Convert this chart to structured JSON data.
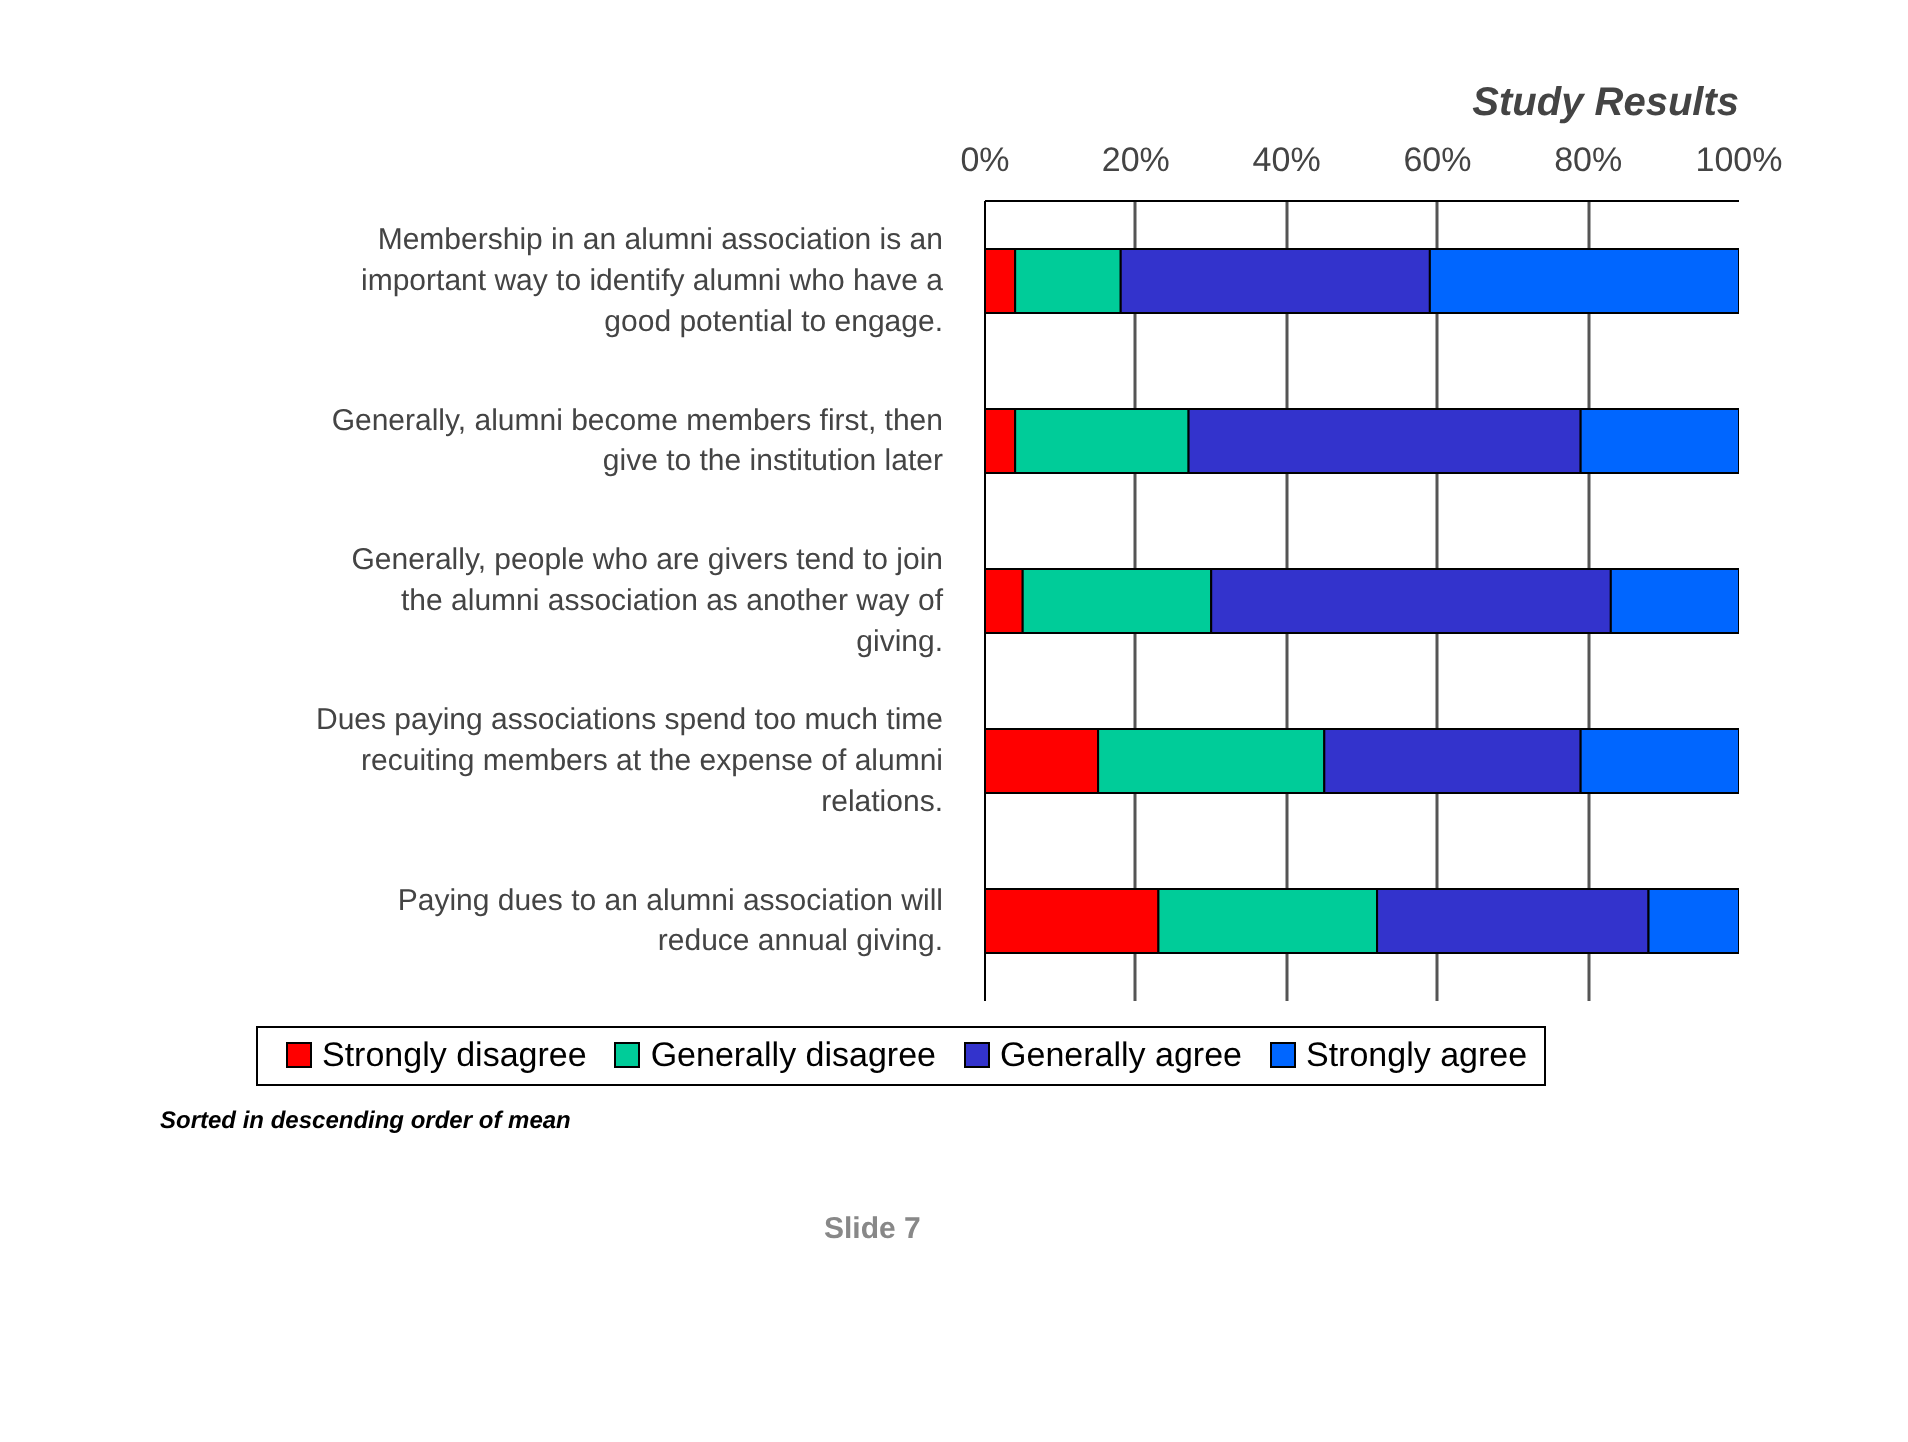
{
  "chart_data": {
    "type": "bar",
    "orientation": "horizontal",
    "stacked": true,
    "title": "Study Results",
    "categories": [
      "Membership in an alumni association is an important way to identify alumni who have a good potential to engage.",
      "Generally, alumni become members first, then give to the institution later",
      "Generally, people who are givers tend to join the alumni association as another way of giving.",
      "Dues paying associations spend too much time recuiting members at the expense of alumni relations.",
      "Paying dues to an alumni association will reduce annual giving."
    ],
    "series": [
      {
        "name": "Strongly disagree",
        "color": "#ff0000",
        "values": [
          4,
          4,
          5,
          15,
          23
        ]
      },
      {
        "name": "Generally disagree",
        "color": "#00cc99",
        "values": [
          14,
          23,
          25,
          30,
          29
        ]
      },
      {
        "name": "Generally agree",
        "color": "#3333cc",
        "values": [
          41,
          52,
          53,
          34,
          36
        ]
      },
      {
        "name": "Strongly agree",
        "color": "#0066ff",
        "values": [
          41,
          21,
          17,
          21,
          12
        ]
      }
    ],
    "xlim": [
      0,
      100
    ],
    "xticks": [
      {
        "value": 0,
        "label": "0%"
      },
      {
        "value": 20,
        "label": "20%"
      },
      {
        "value": 40,
        "label": "40%"
      },
      {
        "value": 60,
        "label": "60%"
      },
      {
        "value": 80,
        "label": "80%"
      },
      {
        "value": 100,
        "label": "100%"
      }
    ],
    "grid": "x",
    "legend": "bottom",
    "annotations": [
      "Sorted in descending order of mean",
      "Slide 7"
    ]
  }
}
